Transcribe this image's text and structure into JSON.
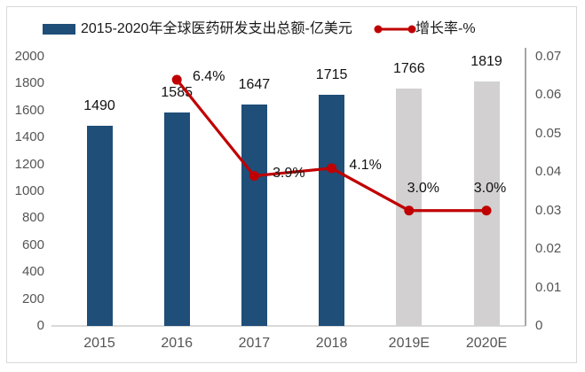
{
  "legend": {
    "bar_label": "2015-2020年全球医药研发支出总额-亿美元",
    "line_label": "增长率-%"
  },
  "colors": {
    "bar": "#1F4E79",
    "bar_estimate": "#D2D0D0",
    "line": "#C00000",
    "axis_text": "#555555",
    "label_text": "#111111",
    "baseline": "#D9D9D9",
    "right_axis_line": "#A6A6A6",
    "frame_border": "#D9D9D9"
  },
  "chart_data": {
    "type": "bar+line",
    "title": "",
    "categories": [
      "2015",
      "2016",
      "2017",
      "2018",
      "2019E",
      "2020E"
    ],
    "series": [
      {
        "name": "2015-2020年全球医药研发支出总额-亿美元",
        "type": "bar",
        "axis": "left",
        "values": [
          1490,
          1585,
          1647,
          1715,
          1766,
          1819
        ],
        "labels": [
          "1490",
          "1585",
          "1647",
          "1715",
          "1766",
          "1819"
        ],
        "estimate_flags": [
          false,
          false,
          false,
          false,
          true,
          true
        ]
      },
      {
        "name": "增长率-%",
        "type": "line",
        "axis": "right",
        "values": [
          null,
          0.064,
          0.039,
          0.041,
          0.03,
          0.03
        ],
        "labels": [
          null,
          "6.4%",
          "3.9%",
          "4.1%",
          "3.0%",
          "3.0%"
        ],
        "label_offsets": [
          [
            0,
            0
          ],
          [
            36,
            -3
          ],
          [
            39,
            -3
          ],
          [
            38,
            -3
          ],
          [
            16,
            -25
          ],
          [
            4,
            -25
          ]
        ]
      }
    ],
    "left_axis": {
      "min": 0,
      "max": 2000,
      "step": 200,
      "ticks": [
        "0",
        "200",
        "400",
        "600",
        "800",
        "1000",
        "1200",
        "1400",
        "1600",
        "1800",
        "2000"
      ]
    },
    "right_axis": {
      "min": 0,
      "max": 0.07,
      "step": 0.01,
      "ticks": [
        "0",
        "0.01",
        "0.02",
        "0.03",
        "0.04",
        "0.05",
        "0.06",
        "0.07"
      ]
    },
    "grid": false,
    "legend_position": "top"
  }
}
